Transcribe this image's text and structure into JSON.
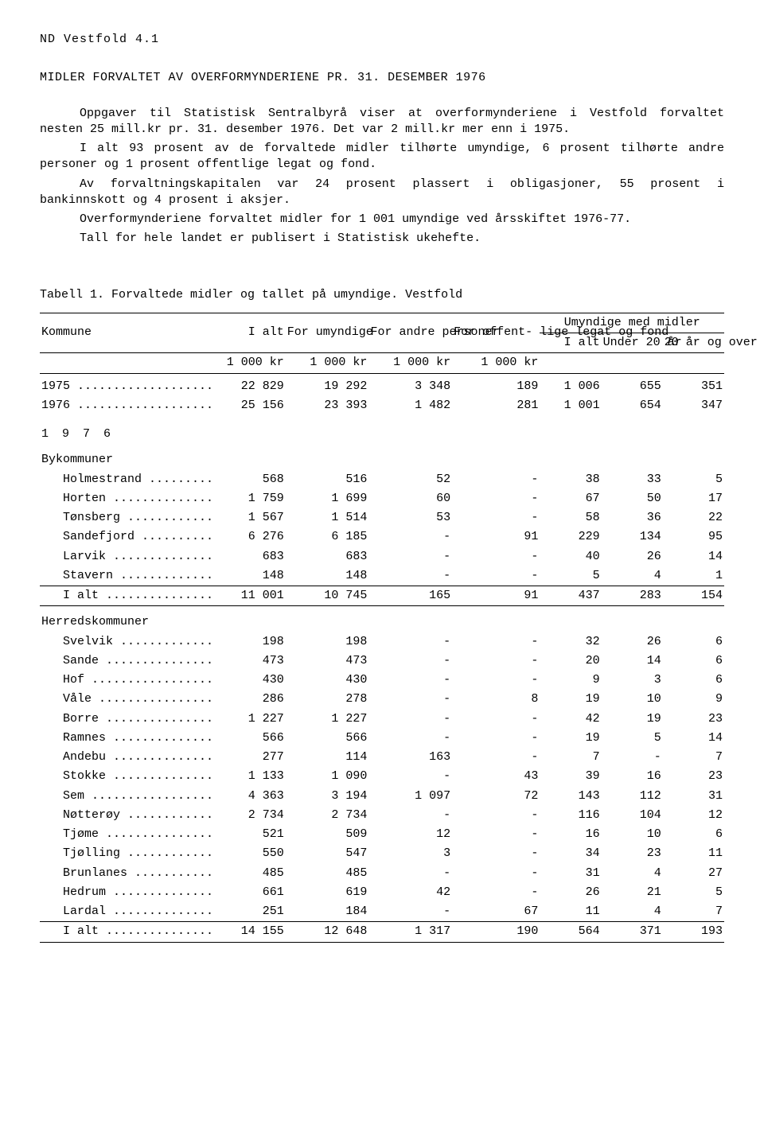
{
  "header_code": "ND  Vestfold  4.1",
  "title": "MIDLER FORVALTET AV OVERFORMYNDERIENE PR. 31. DESEMBER 1976",
  "paragraphs": [
    "Oppgaver til Statistisk Sentralbyrå viser at overformynderiene i Vestfold forvaltet nesten 25 mill.kr pr. 31. desember 1976. Det var 2 mill.kr mer enn i 1975.",
    "I alt 93 prosent av de forvaltede midler tilhørte umyndige, 6 prosent tilhørte andre personer og 1 prosent offentlige legat og fond.",
    "Av forvaltningskapitalen var 24 prosent plassert i obligasjoner, 55 prosent i bankinnskott og 4 prosent i aksjer.",
    "Overformynderiene forvaltet midler for 1 001 umyndige ved årsskiftet 1976-77.",
    "Tall for hele landet er publisert i Statistisk ukehefte."
  ],
  "table_title": "Tabell 1.  Forvaltede midler og tallet på umyndige.  Vestfold",
  "headers": {
    "kommune": "Kommune",
    "ialt": "I alt",
    "for_umyndige": "For umyndige",
    "for_andre": "For andre personer",
    "for_offent": "For offent- lige legat og fond",
    "umyndige_group": "Umyndige med midler",
    "u_ialt": "I alt",
    "u_under": "Under 20 år",
    "u_over": "20 år og over",
    "unit": "1 000 kr"
  },
  "year_rows": [
    {
      "label": "1975",
      "c": [
        "22 829",
        "19 292",
        "3 348",
        "189",
        "1 006",
        "655",
        "351"
      ]
    },
    {
      "label": "1976",
      "c": [
        "25 156",
        "23 393",
        "1 482",
        "281",
        "1 001",
        "654",
        "347"
      ]
    }
  ],
  "section_year": "1 9 7 6",
  "section_by": "Bykommuner",
  "by_rows": [
    {
      "label": "Holmestrand",
      "c": [
        "568",
        "516",
        "52",
        "-",
        "38",
        "33",
        "5"
      ]
    },
    {
      "label": "Horten",
      "c": [
        "1 759",
        "1 699",
        "60",
        "-",
        "67",
        "50",
        "17"
      ]
    },
    {
      "label": "Tønsberg",
      "c": [
        "1 567",
        "1 514",
        "53",
        "-",
        "58",
        "36",
        "22"
      ]
    },
    {
      "label": "Sandefjord",
      "c": [
        "6 276",
        "6 185",
        "-",
        "91",
        "229",
        "134",
        "95"
      ]
    },
    {
      "label": "Larvik",
      "c": [
        "683",
        "683",
        "-",
        "-",
        "40",
        "26",
        "14"
      ]
    },
    {
      "label": "Stavern",
      "c": [
        "148",
        "148",
        "-",
        "-",
        "5",
        "4",
        "1"
      ]
    }
  ],
  "by_total": {
    "label": "I alt",
    "c": [
      "11 001",
      "10 745",
      "165",
      "91",
      "437",
      "283",
      "154"
    ]
  },
  "section_herred": "Herredskommuner",
  "herred_rows": [
    {
      "label": "Svelvik",
      "c": [
        "198",
        "198",
        "-",
        "-",
        "32",
        "26",
        "6"
      ]
    },
    {
      "label": "Sande",
      "c": [
        "473",
        "473",
        "-",
        "-",
        "20",
        "14",
        "6"
      ]
    },
    {
      "label": "Hof",
      "c": [
        "430",
        "430",
        "-",
        "-",
        "9",
        "3",
        "6"
      ]
    },
    {
      "label": "Våle",
      "c": [
        "286",
        "278",
        "-",
        "8",
        "19",
        "10",
        "9"
      ]
    },
    {
      "label": "Borre",
      "c": [
        "1 227",
        "1 227",
        "-",
        "-",
        "42",
        "19",
        "23"
      ]
    },
    {
      "label": "Ramnes",
      "c": [
        "566",
        "566",
        "-",
        "-",
        "19",
        "5",
        "14"
      ]
    },
    {
      "label": "Andebu",
      "c": [
        "277",
        "114",
        "163",
        "-",
        "7",
        "-",
        "7"
      ]
    },
    {
      "label": "Stokke",
      "c": [
        "1 133",
        "1 090",
        "-",
        "43",
        "39",
        "16",
        "23"
      ]
    },
    {
      "label": "Sem",
      "c": [
        "4 363",
        "3 194",
        "1 097",
        "72",
        "143",
        "112",
        "31"
      ]
    },
    {
      "label": "Nøtterøy",
      "c": [
        "2 734",
        "2 734",
        "-",
        "-",
        "116",
        "104",
        "12"
      ]
    },
    {
      "label": "Tjøme",
      "c": [
        "521",
        "509",
        "12",
        "-",
        "16",
        "10",
        "6"
      ]
    },
    {
      "label": "Tjølling",
      "c": [
        "550",
        "547",
        "3",
        "-",
        "34",
        "23",
        "11"
      ]
    },
    {
      "label": "Brunlanes",
      "c": [
        "485",
        "485",
        "-",
        "-",
        "31",
        "4",
        "27"
      ]
    },
    {
      "label": "Hedrum",
      "c": [
        "661",
        "619",
        "42",
        "-",
        "26",
        "21",
        "5"
      ]
    },
    {
      "label": "Lardal",
      "c": [
        "251",
        "184",
        "-",
        "67",
        "11",
        "4",
        "7"
      ]
    }
  ],
  "herred_total": {
    "label": "I alt",
    "c": [
      "14 155",
      "12 648",
      "1 317",
      "190",
      "564",
      "371",
      "193"
    ]
  }
}
